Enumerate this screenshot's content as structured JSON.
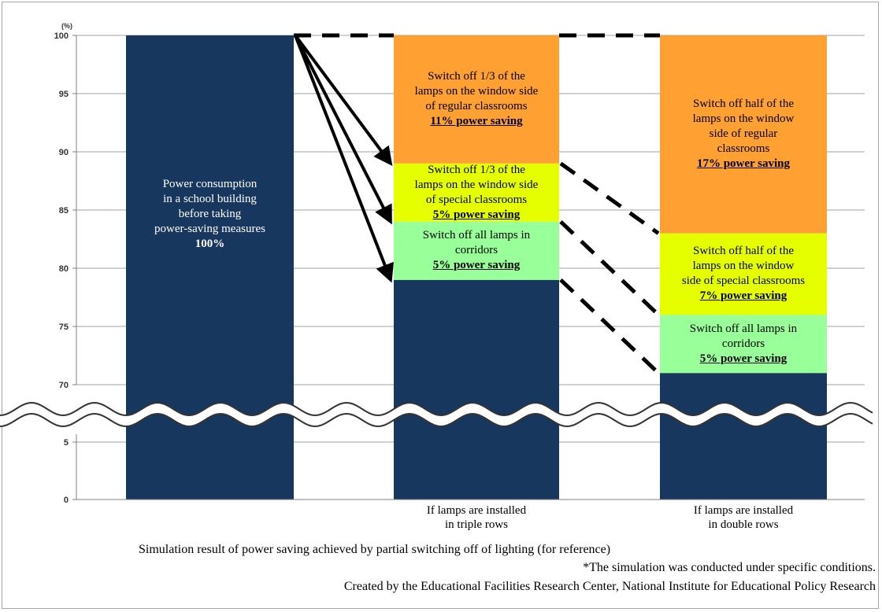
{
  "chart_data": {
    "type": "bar",
    "stacked": true,
    "y_unit": "(%)",
    "y_ticks_upper": [
      70,
      75,
      80,
      85,
      90,
      95,
      100
    ],
    "y_ticks_lower": [
      0,
      5
    ],
    "axis_break": "wavy line between 5 and 70",
    "grid": true,
    "categories": [
      "",
      "If lamps are installed\nin triple rows",
      "If lamps are installed\nin double rows"
    ],
    "bars": [
      {
        "category": "",
        "segments": [
          {
            "from": 0,
            "to": 100,
            "color": "#17375e",
            "label": [
              "Power consumption",
              "in a school building",
              "before taking",
              "power-saving measures"
            ],
            "saving": "100%"
          }
        ]
      },
      {
        "category": "If lamps are installed\nin triple rows",
        "segments": [
          {
            "from": 0,
            "to": 79,
            "color": "#17375e",
            "label": [],
            "saving": ""
          },
          {
            "from": 79,
            "to": 84,
            "color": "#99ff99",
            "label": [
              "Switch off all lamps in",
              "corridors"
            ],
            "saving": "5% power saving"
          },
          {
            "from": 84,
            "to": 89,
            "color": "#e6ff00",
            "label": [
              "Switch off 1/3 of the",
              "lamps on the window side",
              "of special classrooms"
            ],
            "saving": "5% power saving"
          },
          {
            "from": 89,
            "to": 100,
            "color": "#ffa033",
            "label": [
              "Switch off 1/3 of the",
              "lamps on the window side",
              "of regular classrooms"
            ],
            "saving": "11% power saving"
          }
        ]
      },
      {
        "category": "If lamps are installed\nin double rows",
        "segments": [
          {
            "from": 0,
            "to": 71,
            "color": "#17375e",
            "label": [],
            "saving": ""
          },
          {
            "from": 71,
            "to": 76,
            "color": "#99ff99",
            "label": [
              "Switch off all lamps in",
              "corridors"
            ],
            "saving": "5% power saving"
          },
          {
            "from": 76,
            "to": 83,
            "color": "#e6ff00",
            "label": [
              "Switch off half of the",
              "lamps on the window",
              "side of special classrooms"
            ],
            "saving": "7% power saving"
          },
          {
            "from": 83,
            "to": 100,
            "color": "#ffa033",
            "label": [
              "Switch off half of the",
              "lamps on the window",
              "side of regular",
              "classrooms"
            ],
            "saving": "17% power saving"
          }
        ]
      }
    ]
  },
  "captions": {
    "title": "Simulation result of power saving achieved by partial switching off of lighting (for reference)",
    "note": "*The simulation was conducted under specific conditions.",
    "credit": "Created by the Educational Facilities Research Center, National Institute for Educational Policy Research"
  }
}
